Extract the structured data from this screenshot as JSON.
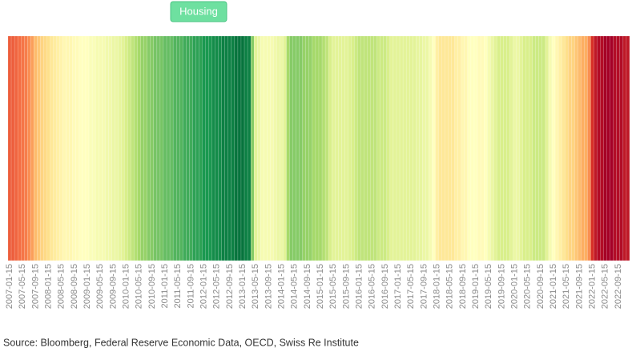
{
  "chart_data": {
    "type": "heatmap",
    "categories": [
      "2007-01-15",
      null,
      null,
      null,
      "2007-05-15",
      null,
      null,
      null,
      "2007-09-15",
      null,
      null,
      null,
      "2008-01-15",
      null,
      null,
      null,
      "2008-05-15",
      null,
      null,
      null,
      "2008-09-15",
      null,
      null,
      null,
      "2009-01-15",
      null,
      null,
      null,
      "2009-05-15",
      null,
      null,
      null,
      "2009-09-15",
      null,
      null,
      null,
      "2010-01-15",
      null,
      null,
      null,
      "2010-05-15",
      null,
      null,
      null,
      "2010-09-15",
      null,
      null,
      null,
      "2011-01-15",
      null,
      null,
      null,
      "2011-05-15",
      null,
      null,
      null,
      "2011-09-15",
      null,
      null,
      null,
      "2012-01-15",
      null,
      null,
      null,
      "2012-05-15",
      null,
      null,
      null,
      "2012-09-15",
      null,
      null,
      null,
      "2013-01-15",
      null,
      null,
      null,
      "2013-05-15",
      null,
      null,
      null,
      "2013-09-15",
      null,
      null,
      null,
      "2014-01-15",
      null,
      null,
      null,
      "2014-05-15",
      null,
      null,
      null,
      "2014-09-15",
      null,
      null,
      null,
      "2015-01-15",
      null,
      null,
      null,
      "2015-05-15",
      null,
      null,
      null,
      "2015-09-15",
      null,
      null,
      null,
      "2016-01-15",
      null,
      null,
      null,
      "2016-05-15",
      null,
      null,
      null,
      "2016-09-15",
      null,
      null,
      null,
      "2017-01-15",
      null,
      null,
      null,
      "2017-05-15",
      null,
      null,
      null,
      "2017-09-15",
      null,
      null,
      null,
      "2018-01-15",
      null,
      null,
      null,
      "2018-05-15",
      null,
      null,
      null,
      "2018-09-15",
      null,
      null,
      null,
      "2019-01-15",
      null,
      null,
      null,
      "2019-05-15",
      null,
      null,
      null,
      "2019-09-15",
      null,
      null,
      null,
      "2020-01-15",
      null,
      null,
      null,
      "2020-05-15",
      null,
      null,
      null,
      "2020-09-15",
      null,
      null,
      null,
      "2021-01-15",
      null,
      null,
      null,
      "2021-05-15",
      null,
      null,
      null,
      "2021-09-15",
      null,
      null,
      null,
      "2022-01-15",
      null,
      null,
      null,
      "2022-05-15",
      null,
      null,
      null,
      "2022-09-15",
      null,
      null,
      null
    ],
    "series": [
      {
        "name": "Housing",
        "color": "#6ee0a0",
        "values": [
          1.3,
          1.3,
          1.25,
          1.2,
          1.15,
          1.1,
          1.0,
          0.9,
          0.7,
          0.6,
          0.5,
          0.45,
          0.4,
          0.3,
          0.25,
          0.2,
          0.15,
          0.1,
          0.1,
          0.1,
          0.05,
          0.05,
          0.0,
          0.0,
          0.0,
          -0.05,
          -0.05,
          -0.1,
          -0.1,
          -0.1,
          -0.15,
          -0.15,
          -0.2,
          -0.2,
          -0.25,
          -0.3,
          -0.4,
          -0.5,
          -0.6,
          -0.7,
          -0.8,
          -0.9,
          -0.9,
          -1.0,
          -1.0,
          -1.1,
          -1.1,
          -1.1,
          -1.2,
          -1.2,
          -1.2,
          -1.3,
          -1.3,
          -1.3,
          -1.4,
          -1.4,
          -1.4,
          -1.5,
          -1.5,
          -1.5,
          -1.6,
          -1.6,
          -1.6,
          -1.7,
          -1.7,
          -1.7,
          -1.8,
          -1.8,
          -1.8,
          -1.8,
          -1.9,
          -1.9,
          -1.9,
          -1.8,
          -1.8,
          -1.0,
          -0.3,
          -0.2,
          -0.1,
          -0.1,
          -0.1,
          -0.1,
          -0.15,
          -0.2,
          -0.2,
          -0.3,
          -0.8,
          -1.0,
          -1.0,
          -1.0,
          -1.0,
          -0.9,
          -0.9,
          -0.9,
          -0.8,
          -0.8,
          -0.8,
          -0.7,
          -0.6,
          -0.4,
          -0.3,
          -0.3,
          -0.3,
          -0.3,
          -0.3,
          -0.35,
          -0.4,
          -0.5,
          -0.6,
          -0.6,
          -0.6,
          -0.6,
          -0.6,
          -0.6,
          -0.5,
          -0.5,
          -0.5,
          -0.4,
          -0.3,
          -0.3,
          -0.3,
          -0.3,
          -0.3,
          -0.3,
          -0.3,
          -0.3,
          -0.25,
          -0.25,
          -0.2,
          -0.2,
          -0.1,
          0.0,
          0.2,
          0.3,
          0.3,
          0.3,
          0.3,
          0.3,
          0.2,
          0.2,
          0.1,
          0.1,
          0.0,
          0.0,
          0.0,
          0.05,
          0.05,
          0.0,
          -0.1,
          -0.2,
          -0.3,
          -0.4,
          -0.4,
          -0.4,
          -0.4,
          -0.3,
          -0.2,
          -0.2,
          -0.3,
          -0.4,
          -0.4,
          -0.4,
          -0.5,
          -0.5,
          -0.5,
          -0.5,
          -0.3,
          -0.1,
          0.0,
          0.1,
          0.2,
          0.3,
          0.4,
          0.5,
          0.5,
          0.6,
          0.7,
          0.8,
          0.8,
          1.0,
          1.6,
          1.8,
          1.9,
          1.9,
          2.0,
          2.0,
          2.0,
          1.9,
          1.9,
          1.9,
          1.8,
          1.8
        ]
      }
    ],
    "zlim": [
      -2,
      2
    ],
    "colorscale": [
      "#006837",
      "#1a9850",
      "#66bd63",
      "#a6d96a",
      "#d9ef8b",
      "#ffffbf",
      "#fee08b",
      "#fdae61",
      "#f46d43",
      "#d73027",
      "#a50026"
    ],
    "source": "Source: Bloomberg, Federal Reserve Economic Data, OECD, Swiss Re Institute"
  }
}
